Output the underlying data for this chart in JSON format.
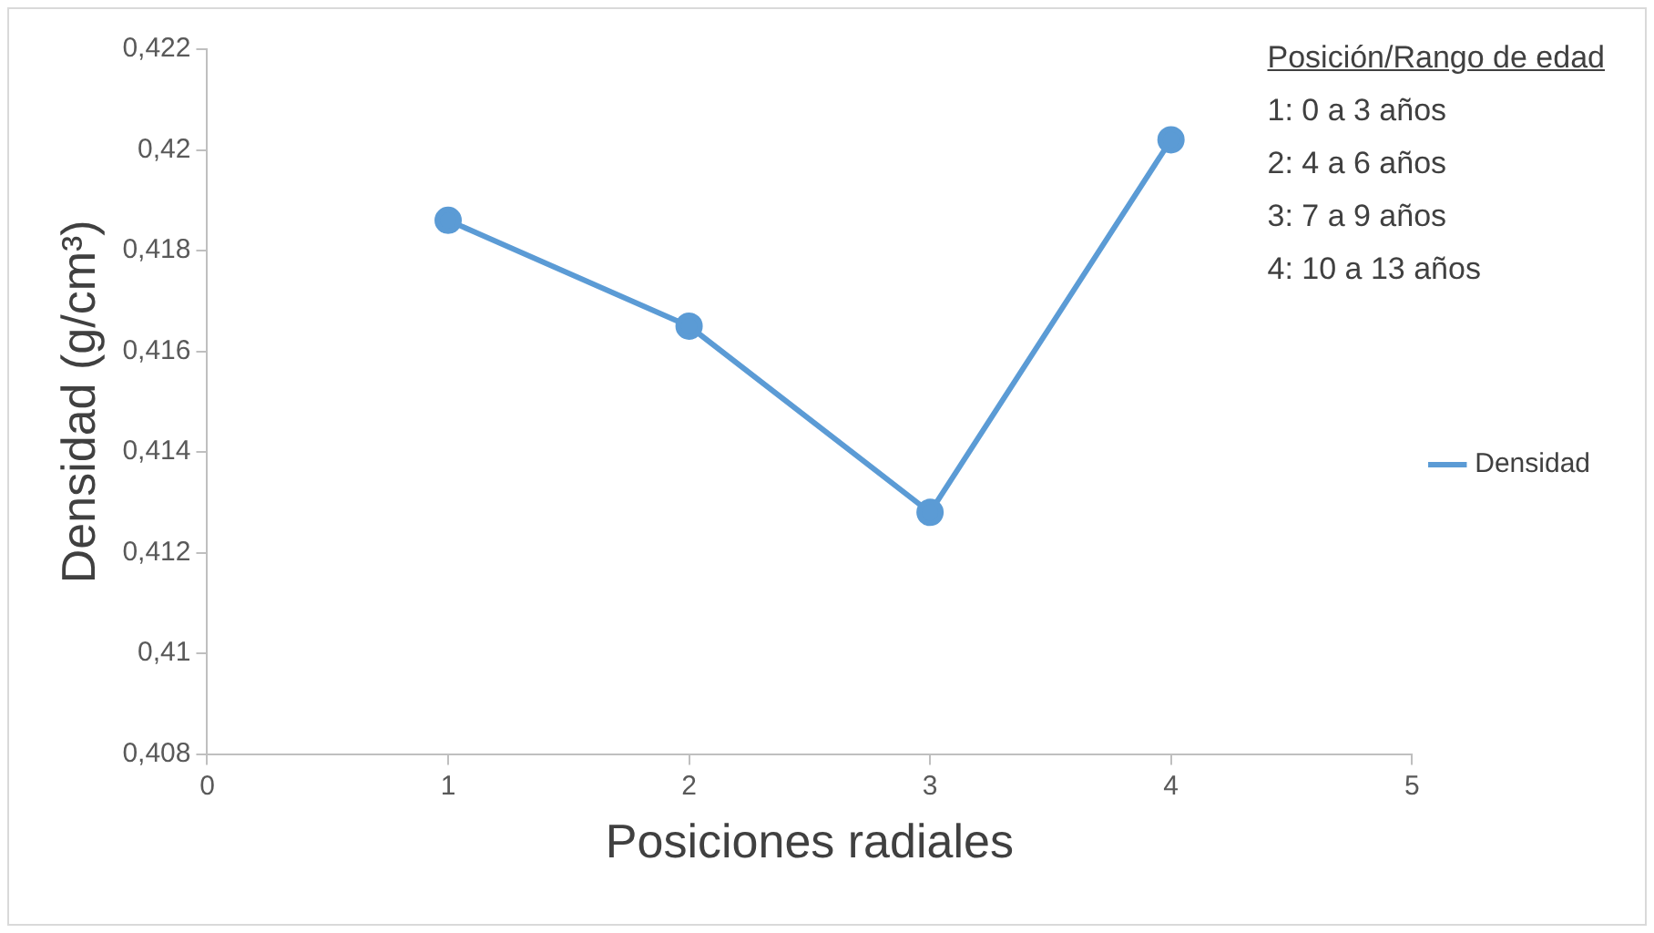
{
  "chart_data": {
    "type": "line",
    "xlabel": "Posiciones radiales",
    "ylabel": "Densidad (g/cm³)",
    "x": [
      1,
      2,
      3,
      4
    ],
    "series": [
      {
        "name": "Densidad",
        "color": "#5b9bd5",
        "values": [
          0.4186,
          0.4165,
          0.4128,
          0.4202
        ]
      }
    ],
    "xlim": [
      0,
      5
    ],
    "xticks": [
      0,
      1,
      2,
      3,
      4,
      5
    ],
    "ylim": [
      0.408,
      0.422
    ],
    "yticks": [
      {
        "value": 0.408,
        "label": "0,408"
      },
      {
        "value": 0.41,
        "label": "0,41"
      },
      {
        "value": 0.412,
        "label": "0,412"
      },
      {
        "value": 0.414,
        "label": "0,414"
      },
      {
        "value": 0.416,
        "label": "0,416"
      },
      {
        "value": 0.418,
        "label": "0,418"
      },
      {
        "value": 0.42,
        "label": "0,42"
      },
      {
        "value": 0.422,
        "label": "0,422"
      }
    ],
    "grid": false,
    "legend": "right",
    "marker": "circle",
    "line_style": "solid",
    "annotations": [
      "Posición/Rango de edad",
      "1: 0 a 3 años",
      "2: 4 a 6 años",
      "3: 7 a 9 años",
      "4: 10 a 13 años"
    ]
  }
}
